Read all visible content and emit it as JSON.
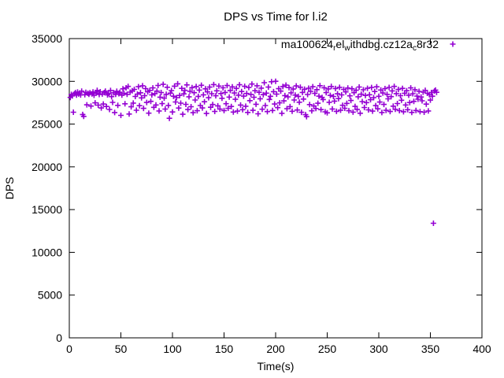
{
  "chart_data": {
    "type": "scatter",
    "title": "DPS vs Time for l.i2",
    "xlabel": "Time(s)",
    "ylabel": "DPS",
    "xlim": [
      0,
      400
    ],
    "ylim": [
      0,
      35000
    ],
    "xticks": [
      0,
      50,
      100,
      150,
      200,
      250,
      300,
      350,
      400
    ],
    "yticks": [
      0,
      5000,
      10000,
      15000,
      20000,
      25000,
      30000,
      35000
    ],
    "grid": false,
    "legend_position": "top-right-inside",
    "background_color": "#ffffff",
    "border_color": "#000000",
    "series": [
      {
        "name": "ma100624_rel_withdbg.cz12a_c8r32",
        "label_segments": [
          {
            "text": "ma100624",
            "sub": false
          },
          {
            "text": "r",
            "sub": true
          },
          {
            "text": "el",
            "sub": false
          },
          {
            "text": "w",
            "sub": true
          },
          {
            "text": "ithdbg.cz12a",
            "sub": false
          },
          {
            "text": "c",
            "sub": true
          },
          {
            "text": "8r32",
            "sub": false
          }
        ],
        "marker": "plus",
        "color": "#9400D3",
        "x_start": 1,
        "x_step": 1,
        "y": [
          28124,
          28467,
          28293,
          26385,
          28551,
          28680,
          28390,
          28745,
          28512,
          28633,
          28402,
          28850,
          26120,
          25897,
          28433,
          28710,
          27250,
          28595,
          28484,
          28660,
          27110,
          28530,
          28755,
          28370,
          27480,
          28608,
          28940,
          27215,
          28460,
          28785,
          26890,
          28520,
          27350,
          28690,
          28845,
          27060,
          28415,
          28570,
          26710,
          28930,
          28210,
          27540,
          28660,
          26350,
          28480,
          28835,
          27190,
          28555,
          28720,
          26020,
          28390,
          29120,
          28610,
          27370,
          29240,
          28480,
          29410,
          26180,
          28740,
          27020,
          28890,
          27460,
          29060,
          28230,
          26620,
          28510,
          29370,
          27150,
          28660,
          28060,
          29480,
          26840,
          28320,
          29150,
          27530,
          28770,
          26280,
          28940,
          27660,
          28410,
          29230,
          26960,
          28560,
          27240,
          28860,
          29520,
          26540,
          28150,
          28690,
          27390,
          29650,
          28040,
          26760,
          28480,
          29310,
          27180,
          25680,
          28620,
          28920,
          26420,
          28260,
          29440,
          27590,
          28090,
          29710,
          26880,
          28350,
          27450,
          29180,
          26150,
          28530,
          28950,
          27310,
          29580,
          26700,
          28190,
          28840,
          27030,
          29260,
          26330,
          28670,
          27820,
          29390,
          26560,
          28240,
          28980,
          27170,
          29540,
          26890,
          28420,
          27610,
          29120,
          26240,
          28760,
          28080,
          29330,
          26970,
          28550,
          27290,
          29620,
          26480,
          28310,
          28890,
          27130,
          29450,
          26760,
          28570,
          28020,
          29240,
          26580,
          28700,
          27380,
          29510,
          26850,
          28160,
          28930,
          27060,
          29350,
          26410,
          28640,
          27900,
          29170,
          26520,
          28390,
          29600,
          27230,
          28810,
          26680,
          28270,
          29420,
          27090,
          28580,
          26360,
          29280,
          27740,
          28470,
          29690,
          26610,
          28140,
          28900,
          27320,
          29480,
          26200,
          28720,
          27960,
          29210,
          26740,
          28440,
          29840,
          27170,
          28620,
          26460,
          29330,
          27880,
          28250,
          29950,
          26590,
          28790,
          27350,
          30010,
          28510,
          26920,
          29140,
          27480,
          28860,
          26260,
          29390,
          27710,
          28330,
          29560,
          26800,
          28180,
          29270,
          27040,
          28650,
          26500,
          29100,
          27820,
          28400,
          29460,
          26650,
          28240,
          27560,
          29310,
          26380,
          28700,
          27930,
          29080,
          26100,
          25870,
          28460,
          29200,
          27280,
          28830,
          26550,
          29370,
          27120,
          28590,
          26820,
          29030,
          27440,
          28270,
          29490,
          26690,
          28120,
          27870,
          29250,
          26430,
          28680,
          26310,
          29110,
          27550,
          28360,
          29400,
          26770,
          28230,
          27690,
          29160,
          26490,
          28540,
          27980,
          29300,
          26630,
          28410,
          27200,
          29060,
          26850,
          28760,
          27420,
          29220,
          26560,
          28300,
          27760,
          29130,
          26400,
          28670,
          27070,
          28960,
          26720,
          28190,
          29340,
          26270,
          28500,
          27630,
          29010,
          26940,
          28350,
          27510,
          29190,
          26660,
          28430,
          27850,
          29280,
          26520,
          28090,
          28810,
          27160,
          29360,
          26780,
          28250,
          27580,
          28990,
          26350,
          28640,
          27300,
          29150,
          26610,
          28470,
          27950,
          29290,
          26470,
          28210,
          28880,
          27100,
          29410,
          26730,
          28560,
          27400,
          29050,
          26570,
          28320,
          27790,
          29180,
          26440,
          28610,
          27240,
          28900,
          26680,
          28380,
          27520,
          29230,
          26360,
          28550,
          27660,
          29020,
          26590,
          28280,
          27910,
          28830,
          26450,
          28170,
          27720,
          28740,
          26390,
          28940,
          27340,
          28600,
          26540,
          28460,
          27810,
          28690,
          28260,
          13400,
          28870,
          28980,
          28720
        ]
      }
    ]
  }
}
